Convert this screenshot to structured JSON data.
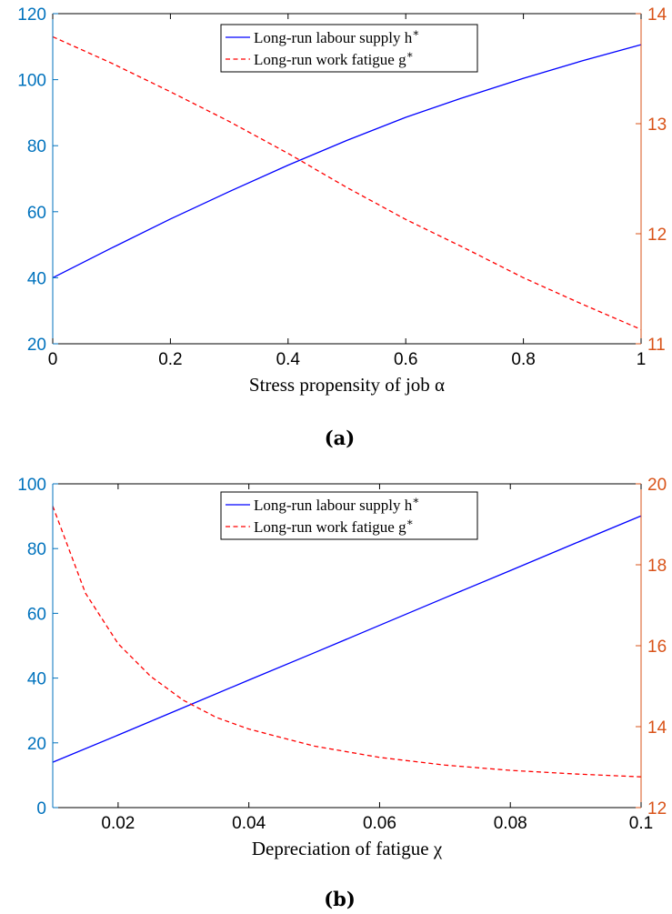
{
  "colors": {
    "left_axis": "#0072BD",
    "right_axis": "#D95319",
    "series_h": "#0000FF",
    "series_g": "#FF0000",
    "frame": "#000000",
    "background": "#FFFFFF"
  },
  "chart_data": [
    {
      "type": "line",
      "caption": "(a)",
      "xlabel": "Stress propensity of job α",
      "xlim": [
        0,
        1
      ],
      "xticks": [
        0,
        0.2,
        0.4,
        0.6,
        0.8,
        1
      ],
      "xtick_labels": [
        "0",
        "0.2",
        "0.4",
        "0.6",
        "0.8",
        "1"
      ],
      "ylim_left": [
        20,
        120
      ],
      "yticks_left": [
        20,
        40,
        60,
        80,
        100,
        120
      ],
      "ytick_labels_left": [
        "20",
        "40",
        "60",
        "80",
        "100",
        "120"
      ],
      "ylim_right": [
        11,
        14
      ],
      "yticks_right": [
        11,
        12,
        13,
        14
      ],
      "ytick_labels_right": [
        "11",
        "12",
        "13",
        "14"
      ],
      "legend_position": "top-center",
      "grid": false,
      "series": [
        {
          "name": "Long-run labour supply h*",
          "legend_text": "Long-run labour supply h",
          "legend_sup": "∗",
          "axis": "left",
          "style": "solid",
          "x": [
            0,
            0.1,
            0.2,
            0.3,
            0.4,
            0.5,
            0.6,
            0.7,
            0.8,
            0.9,
            1.0
          ],
          "y": [
            40,
            49,
            57.8,
            66.1,
            74.1,
            81.6,
            88.6,
            94.7,
            100.4,
            105.7,
            110.6
          ]
        },
        {
          "name": "Long-run work fatigue g*",
          "legend_text": "Long-run work fatigue g",
          "legend_sup": "∗",
          "axis": "right",
          "style": "dashed",
          "x": [
            0,
            0.1,
            0.2,
            0.3,
            0.4,
            0.5,
            0.6,
            0.7,
            0.8,
            0.9,
            1.0
          ],
          "y": [
            13.79,
            13.55,
            13.29,
            13.02,
            12.73,
            12.42,
            12.13,
            11.87,
            11.6,
            11.36,
            11.13
          ]
        }
      ]
    },
    {
      "type": "line",
      "caption": "(b)",
      "xlabel": "Depreciation of fatigue χ",
      "xlim": [
        0.01,
        0.1
      ],
      "xticks": [
        0.02,
        0.04,
        0.06,
        0.08,
        0.1
      ],
      "xtick_labels": [
        "0.02",
        "0.04",
        "0.06",
        "0.08",
        "0.1"
      ],
      "ylim_left": [
        0,
        100
      ],
      "yticks_left": [
        0,
        20,
        40,
        60,
        80,
        100
      ],
      "ytick_labels_left": [
        "0",
        "20",
        "40",
        "60",
        "80",
        "100"
      ],
      "ylim_right": [
        12,
        20
      ],
      "yticks_right": [
        12,
        14,
        16,
        18,
        20
      ],
      "ytick_labels_right": [
        "12",
        "14",
        "16",
        "18",
        "20"
      ],
      "legend_position": "top-center",
      "grid": false,
      "series": [
        {
          "name": "Long-run labour supply h*",
          "legend_text": "Long-run labour supply h",
          "legend_sup": "∗",
          "axis": "left",
          "style": "solid",
          "x": [
            0.01,
            0.02,
            0.03,
            0.04,
            0.05,
            0.06,
            0.07,
            0.08,
            0.09,
            0.1
          ],
          "y": [
            14,
            22.4,
            30.9,
            39.4,
            47.8,
            56.3,
            64.8,
            73.2,
            81.7,
            90.1
          ]
        },
        {
          "name": "Long-run work fatigue g*",
          "legend_text": "Long-run work fatigue g",
          "legend_sup": "∗",
          "axis": "right",
          "style": "dashed",
          "x": [
            0.01,
            0.015,
            0.02,
            0.025,
            0.03,
            0.035,
            0.04,
            0.05,
            0.06,
            0.07,
            0.08,
            0.09,
            0.1
          ],
          "y": [
            19.45,
            17.3,
            16.05,
            15.24,
            14.65,
            14.23,
            13.94,
            13.52,
            13.24,
            13.05,
            12.92,
            12.83,
            12.76
          ]
        }
      ]
    }
  ]
}
